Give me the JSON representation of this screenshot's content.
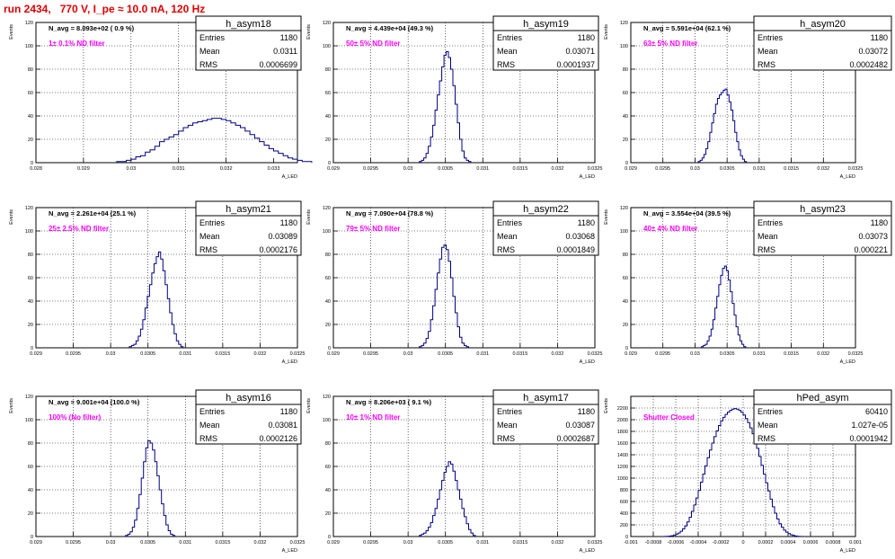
{
  "run_title": "run 2434,   770 V, I_pe ≈ 10.0 nA, 120 Hz",
  "colors": {
    "hist": "#000080",
    "note": "#ff00ff",
    "title": "#e00000",
    "grid": "#000000"
  },
  "stats_labels": {
    "entries": "Entries",
    "mean": "Mean",
    "rms": "RMS"
  },
  "chart_data": [
    {
      "type": "bar",
      "name": "h_asym18",
      "ylabel": "Events",
      "xlabel": "A_LED",
      "xlim": [
        0.028,
        0.0335
      ],
      "ylim": [
        0,
        120
      ],
      "xticks": [
        0.028,
        0.029,
        0.03,
        0.031,
        0.032,
        0.033
      ],
      "xtick_labels": [
        "0.028",
        "0.029",
        "0.03",
        "0.031",
        "0.032",
        "0.033"
      ],
      "yticks": [
        0,
        20,
        40,
        60,
        80,
        100,
        120
      ],
      "navg": "N_avg = 8.093e+02 ( 0.9 %)",
      "note": "1± 0.1% ND filter",
      "entries": "1180",
      "mean": "0.0311",
      "rms": "0.0006699",
      "bins_start": 0.0297,
      "bin_width": 0.0001,
      "values": [
        1,
        1,
        2,
        3,
        5,
        6,
        9,
        11,
        14,
        18,
        20,
        22,
        24,
        27,
        30,
        32,
        34,
        35,
        36,
        37,
        38,
        38,
        37,
        36,
        34,
        32,
        30,
        27,
        24,
        21,
        18,
        15,
        12,
        10,
        8,
        6,
        4,
        3,
        2,
        1,
        1
      ]
    },
    {
      "type": "bar",
      "name": "h_asym19",
      "ylabel": "Events",
      "xlabel": "A_LED",
      "xlim": [
        0.029,
        0.0325
      ],
      "ylim": [
        0,
        120
      ],
      "xticks": [
        0.029,
        0.0295,
        0.03,
        0.0305,
        0.031,
        0.0315,
        0.032,
        0.0325
      ],
      "xtick_labels": [
        "0.029",
        "0.0295",
        "0.03",
        "0.0305",
        "0.031",
        "0.0315",
        "0.032",
        "0.0325"
      ],
      "yticks": [
        0,
        20,
        40,
        60,
        80,
        100,
        120
      ],
      "navg": "N_avg = 4.439e+04 (49.3 %)",
      "note": "50± 5% ND filter",
      "entries": "1180",
      "mean": "0.03071",
      "rms": "0.0001937",
      "bins_start": 0.03015,
      "bin_width": 3e-05,
      "values": [
        1,
        2,
        4,
        8,
        14,
        22,
        32,
        45,
        58,
        70,
        82,
        92,
        95,
        90,
        80,
        66,
        50,
        34,
        20,
        10,
        4,
        2,
        1
      ]
    },
    {
      "type": "bar",
      "name": "h_asym20",
      "ylabel": "Events",
      "xlabel": "A_LED",
      "xlim": [
        0.029,
        0.0325
      ],
      "ylim": [
        0,
        120
      ],
      "xticks": [
        0.029,
        0.0295,
        0.03,
        0.0305,
        0.031,
        0.0315,
        0.032,
        0.0325
      ],
      "xtick_labels": [
        "0.029",
        "0.0295",
        "0.03",
        "0.0305",
        "0.031",
        "0.0315",
        "0.032",
        "0.0325"
      ],
      "yticks": [
        0,
        20,
        40,
        60,
        80,
        100,
        120
      ],
      "navg": "N_avg = 5.591e+04 (62.1 %)",
      "note": "63± 5% ND filter",
      "entries": "1180",
      "mean": "0.03072",
      "rms": "0.0002482",
      "bins_start": 0.03005,
      "bin_width": 3e-05,
      "values": [
        1,
        2,
        4,
        7,
        12,
        18,
        26,
        34,
        42,
        50,
        55,
        58,
        60,
        62,
        63,
        58,
        52,
        45,
        36,
        26,
        18,
        11,
        6,
        3,
        1
      ]
    },
    {
      "type": "bar",
      "name": "h_asym21",
      "ylabel": "Events",
      "xlabel": "A_LED",
      "xlim": [
        0.029,
        0.0325
      ],
      "ylim": [
        0,
        120
      ],
      "xticks": [
        0.029,
        0.0295,
        0.03,
        0.0305,
        0.031,
        0.0315,
        0.032,
        0.0325
      ],
      "xtick_labels": [
        "0.029",
        "0.0295",
        "0.03",
        "0.0305",
        "0.031",
        "0.0315",
        "0.032",
        "0.0325"
      ],
      "yticks": [
        0,
        20,
        40,
        60,
        80,
        100,
        120
      ],
      "navg": "N_avg = 2.261e+04 (25.1 %)",
      "note": "25± 2.5% ND filter",
      "entries": "1180",
      "mean": "0.03089",
      "rms": "0.0002176",
      "bins_start": 0.03025,
      "bin_width": 3e-05,
      "values": [
        1,
        2,
        3,
        6,
        10,
        16,
        24,
        34,
        44,
        54,
        64,
        72,
        78,
        82,
        76,
        66,
        54,
        42,
        30,
        20,
        12,
        6,
        3,
        1
      ]
    },
    {
      "type": "bar",
      "name": "h_asym22",
      "ylabel": "Events",
      "xlabel": "A_LED",
      "xlim": [
        0.029,
        0.0325
      ],
      "ylim": [
        0,
        120
      ],
      "xticks": [
        0.029,
        0.0295,
        0.03,
        0.0305,
        0.031,
        0.0315,
        0.032,
        0.0325
      ],
      "xtick_labels": [
        "0.029",
        "0.0295",
        "0.03",
        "0.0305",
        "0.031",
        "0.0315",
        "0.032",
        "0.0325"
      ],
      "yticks": [
        0,
        20,
        40,
        60,
        80,
        100,
        120
      ],
      "navg": "N_avg = 7.090e+04 (78.8 %)",
      "note": "79± 5% ND filter",
      "entries": "1180",
      "mean": "0.03068",
      "rms": "0.0001849",
      "bins_start": 0.03015,
      "bin_width": 3e-05,
      "values": [
        1,
        2,
        4,
        8,
        14,
        24,
        36,
        50,
        64,
        76,
        86,
        88,
        84,
        74,
        60,
        44,
        30,
        18,
        9,
        4,
        2,
        1
      ]
    },
    {
      "type": "bar",
      "name": "h_asym23",
      "ylabel": "Events",
      "xlabel": "A_LED",
      "xlim": [
        0.029,
        0.0325
      ],
      "ylim": [
        0,
        120
      ],
      "xticks": [
        0.029,
        0.0295,
        0.03,
        0.0305,
        0.031,
        0.0315,
        0.032,
        0.0325
      ],
      "xtick_labels": [
        "0.029",
        "0.0295",
        "0.03",
        "0.0305",
        "0.031",
        "0.0315",
        "0.032",
        "0.0325"
      ],
      "yticks": [
        0,
        20,
        40,
        60,
        80,
        100,
        120
      ],
      "navg": "N_avg = 3.554e+04 (39.5 %)",
      "note": "40± 4% ND filter",
      "entries": "1180",
      "mean": "0.03073",
      "rms": "0.000221",
      "bins_start": 0.0301,
      "bin_width": 3e-05,
      "values": [
        1,
        2,
        3,
        6,
        10,
        16,
        24,
        34,
        44,
        54,
        62,
        68,
        70,
        66,
        58,
        48,
        38,
        28,
        18,
        11,
        6,
        3,
        1
      ]
    },
    {
      "type": "bar",
      "name": "h_asym16",
      "ylabel": "Events",
      "xlabel": "A_LED",
      "xlim": [
        0.029,
        0.0325
      ],
      "ylim": [
        0,
        120
      ],
      "xticks": [
        0.029,
        0.0295,
        0.03,
        0.0305,
        0.031,
        0.0315,
        0.032,
        0.0325
      ],
      "xtick_labels": [
        "0.029",
        "0.0295",
        "0.03",
        "0.0305",
        "0.031",
        "0.0315",
        "0.032",
        "0.0325"
      ],
      "yticks": [
        0,
        20,
        40,
        60,
        80,
        100,
        120
      ],
      "navg": "N_avg = 9.001e+04 (100.0 %)",
      "note": "100% (No filter)",
      "entries": "1180",
      "mean": "0.03081",
      "rms": "0.0002126",
      "bins_start": 0.0302,
      "bin_width": 3e-05,
      "values": [
        1,
        2,
        4,
        8,
        14,
        24,
        36,
        50,
        64,
        76,
        82,
        80,
        74,
        64,
        52,
        40,
        28,
        18,
        10,
        5,
        2,
        1
      ]
    },
    {
      "type": "bar",
      "name": "h_asym17",
      "ylabel": "Events",
      "xlabel": "A_LED",
      "xlim": [
        0.029,
        0.0325
      ],
      "ylim": [
        0,
        120
      ],
      "xticks": [
        0.029,
        0.0295,
        0.03,
        0.0305,
        0.031,
        0.0315,
        0.032,
        0.0325
      ],
      "xtick_labels": [
        "0.029",
        "0.0295",
        "0.03",
        "0.0305",
        "0.031",
        "0.0315",
        "0.032",
        "0.0325"
      ],
      "yticks": [
        0,
        20,
        40,
        60,
        80,
        100,
        120
      ],
      "navg": "N_avg = 8.206e+03 ( 9.1 %)",
      "note": "10± 1% ND filter",
      "entries": "1180",
      "mean": "0.03087",
      "rms": "0.0002687",
      "bins_start": 0.03015,
      "bin_width": 3e-05,
      "values": [
        1,
        2,
        3,
        5,
        8,
        12,
        18,
        24,
        32,
        40,
        48,
        55,
        60,
        64,
        62,
        56,
        48,
        40,
        32,
        24,
        17,
        11,
        6,
        3,
        1
      ]
    },
    {
      "type": "bar",
      "name": "hPed_asym",
      "ylabel": "Events",
      "xlabel": "A_LED",
      "xlim": [
        -0.001,
        0.001
      ],
      "ylim": [
        0,
        2400
      ],
      "xticks": [
        -0.001,
        -0.0008,
        -0.0006,
        -0.0004,
        -0.0002,
        0,
        0.0002,
        0.0004,
        0.0006,
        0.0008,
        0.001
      ],
      "xtick_labels": [
        "-0.001",
        "-0.0008",
        "-0.0006",
        "-0.0004",
        "-0.0002",
        "0",
        "0.0002",
        "0.0004",
        "0.0006",
        "0.0008",
        "0.001"
      ],
      "yticks": [
        0,
        200,
        400,
        600,
        800,
        1000,
        1200,
        1400,
        1600,
        1800,
        2000,
        2200
      ],
      "navg": "",
      "note": "Shutter Closed",
      "entries": "60410",
      "mean": "1.027e-05",
      "rms": "0.0001942",
      "bins_start": -0.0007,
      "bin_width": 2e-05,
      "values": [
        2,
        4,
        8,
        14,
        24,
        40,
        60,
        90,
        130,
        180,
        250,
        330,
        430,
        540,
        660,
        790,
        930,
        1070,
        1210,
        1350,
        1480,
        1600,
        1710,
        1810,
        1900,
        1980,
        2040,
        2090,
        2130,
        2160,
        2180,
        2190,
        2180,
        2160,
        2130,
        2080,
        2020,
        1950,
        1860,
        1760,
        1640,
        1510,
        1370,
        1220,
        1070,
        920,
        780,
        640,
        510,
        400,
        300,
        220,
        160,
        110,
        75,
        50,
        30,
        18,
        10,
        5,
        2
      ]
    }
  ]
}
